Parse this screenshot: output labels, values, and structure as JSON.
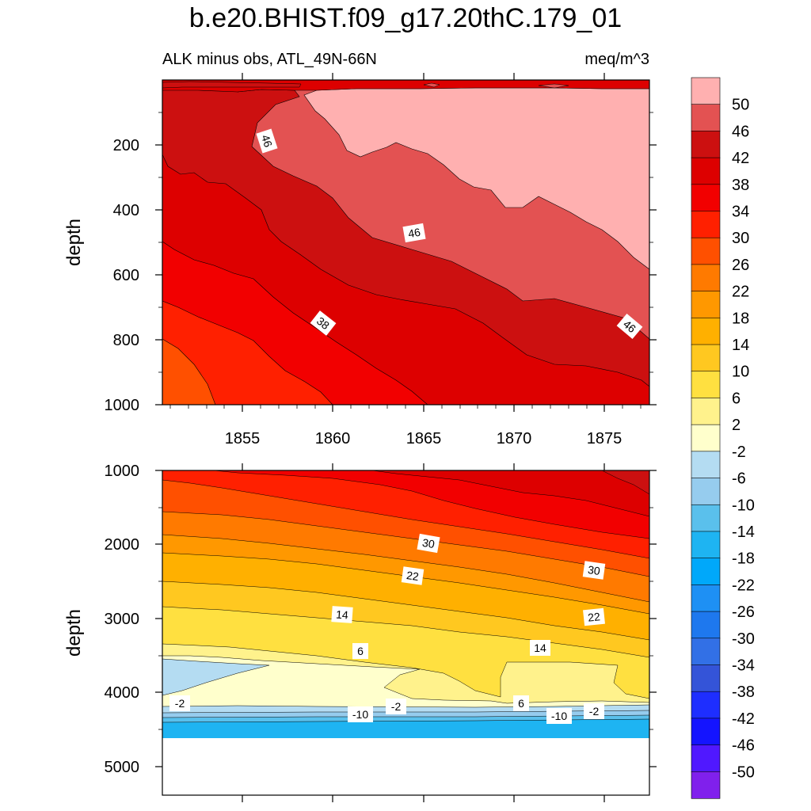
{
  "title": "b.e20.BHIST.f09_g17.20thC.179_01",
  "subtitle_left": "ALK minus obs, ATL_49N-66N",
  "subtitle_right": "meq/m^3",
  "chart_data": [
    {
      "type": "contour",
      "panel": "upper",
      "ylabel": "depth",
      "ylim": [
        1000,
        0
      ],
      "yticks": [
        "200",
        "400",
        "600",
        "800",
        "1000"
      ],
      "xlim": [
        1850.5,
        1877.5
      ],
      "xticks": [
        "1855",
        "1860",
        "1865",
        "1870",
        "1875"
      ],
      "contour_labels": [
        "46",
        "46",
        "38",
        "46"
      ],
      "value_range": "30 to 54 meq/m^3"
    },
    {
      "type": "contour",
      "panel": "lower",
      "ylabel": "depth",
      "ylim": [
        5400,
        1000
      ],
      "yticks": [
        "1000",
        "2000",
        "3000",
        "4000",
        "5000"
      ],
      "xlim": [
        1850.5,
        1877.5
      ],
      "contour_labels": [
        "30",
        "30",
        "22",
        "22",
        "14",
        "14",
        "6",
        "6",
        "-2",
        "-2",
        "-2",
        "-10",
        "-10"
      ],
      "value_range": "-14 to 42 meq/m^3"
    }
  ],
  "colorbar": {
    "labels": [
      "50",
      "46",
      "42",
      "38",
      "34",
      "30",
      "26",
      "22",
      "18",
      "14",
      "10",
      "6",
      "2",
      "-2",
      "-6",
      "-10",
      "-14",
      "-18",
      "-22",
      "-26",
      "-30",
      "-34",
      "-38",
      "-42",
      "-46",
      "-50"
    ],
    "colors": [
      "#FFB0B0",
      "#E35252",
      "#CC1010",
      "#DD0000",
      "#F20000",
      "#FF2000",
      "#FF5000",
      "#FF7A00",
      "#FF9800",
      "#FFB000",
      "#FFC820",
      "#FFE040",
      "#FFF28C",
      "#FFFFCC",
      "#B4DCF2",
      "#96CCEE",
      "#5AC0EC",
      "#1EB4F2",
      "#00A8FA",
      "#1E90F4",
      "#1E78EE",
      "#3270E6",
      "#3454D8",
      "#1E2EFF",
      "#1414FF",
      "#5018FF",
      "#8020EC"
    ]
  }
}
